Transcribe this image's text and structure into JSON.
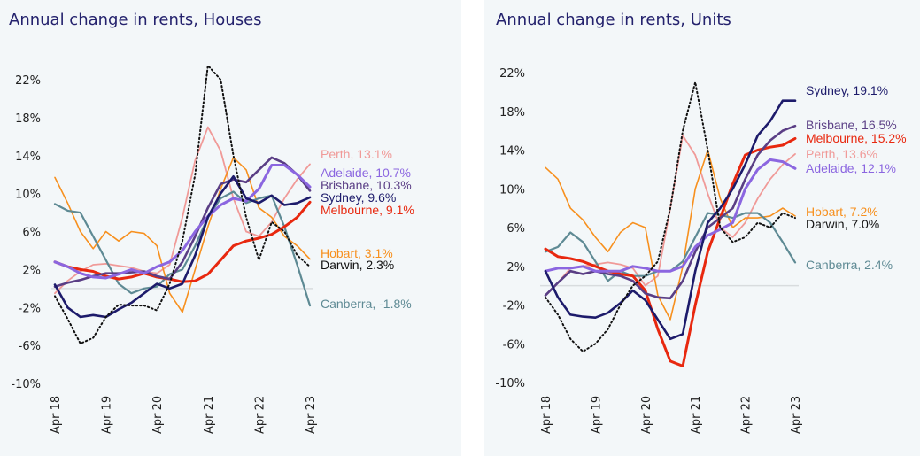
{
  "colors": {
    "Sydney": "#1d1b6b",
    "Melbourne": "#e8280f",
    "Brisbane": "#5a3e85",
    "Adelaide": "#8b66e0",
    "Perth": "#f09a98",
    "Hobart": "#f7901e",
    "Darwin": "#111111",
    "Canberra": "#5e8a94"
  },
  "chart_data": [
    {
      "type": "line",
      "title": "Annual change in rents, Houses",
      "xlabel": "",
      "ylabel": "",
      "ylim": [
        -10,
        22
      ],
      "yticks": [
        "22%",
        "18%",
        "14%",
        "10%",
        "6%",
        "2%",
        "-2%",
        "-6%",
        "-10%"
      ],
      "ytick_values": [
        22,
        18,
        14,
        10,
        6,
        2,
        -2,
        -6,
        -10
      ],
      "xticks": [
        "Apr 18",
        "Apr 19",
        "Apr 20",
        "Apr 21",
        "Apr 22",
        "Apr 23"
      ],
      "x_note": "x in years since Apr 18, quarterly samples",
      "x": [
        0,
        0.25,
        0.5,
        0.75,
        1,
        1.25,
        1.5,
        1.75,
        2,
        2.25,
        2.5,
        2.75,
        3,
        3.25,
        3.5,
        3.75,
        4,
        4.25,
        4.5,
        4.75,
        5
      ],
      "grid": false,
      "zero_line": true,
      "series": [
        {
          "name": "Perth",
          "end_label": "Perth, 13.1%",
          "values": [
            -0.5,
            0.8,
            1.8,
            2.5,
            2.6,
            2.4,
            2.2,
            1.8,
            1.6,
            2.5,
            7.5,
            13.5,
            17.0,
            14.5,
            9.5,
            6.0,
            5.5,
            7.0,
            9.5,
            11.5,
            13.1
          ]
        },
        {
          "name": "Adelaide",
          "end_label": "Adelaide, 10.7%",
          "values": [
            2.8,
            2.3,
            1.6,
            1.2,
            1.1,
            1.5,
            2.0,
            1.6,
            2.3,
            2.8,
            4.0,
            6.0,
            7.6,
            8.8,
            9.5,
            9.2,
            10.5,
            13.0,
            13.0,
            12.0,
            10.7
          ]
        },
        {
          "name": "Brisbane",
          "end_label": "Brisbane, 10.3%",
          "values": [
            0.2,
            0.6,
            0.9,
            1.3,
            1.6,
            1.6,
            1.7,
            1.8,
            1.3,
            1.0,
            2.8,
            5.5,
            8.5,
            11.0,
            11.5,
            11.2,
            12.5,
            13.8,
            13.2,
            12.0,
            10.3
          ]
        },
        {
          "name": "Sydney",
          "end_label": "Sydney, 9.6%",
          "values": [
            0.4,
            -2.0,
            -3.0,
            -2.8,
            -3.0,
            -2.2,
            -1.5,
            -0.5,
            0.5,
            0.0,
            0.5,
            3.5,
            7.5,
            10.0,
            11.8,
            9.5,
            9.0,
            9.8,
            8.8,
            9.0,
            9.6
          ]
        },
        {
          "name": "Melbourne",
          "end_label": "Melbourne, 9.1%",
          "values": [
            2.8,
            2.3,
            2.0,
            1.8,
            1.3,
            1.0,
            1.2,
            1.6,
            1.2,
            1.0,
            0.7,
            0.8,
            1.5,
            3.0,
            4.5,
            5.0,
            5.3,
            5.7,
            6.5,
            7.5,
            9.1
          ]
        },
        {
          "name": "Hobart",
          "end_label": "Hobart, 3.1%",
          "values": [
            11.7,
            9.0,
            6.0,
            4.2,
            6.0,
            5.0,
            6.0,
            5.8,
            4.5,
            -0.5,
            -2.5,
            2.0,
            6.5,
            10.5,
            13.8,
            12.5,
            8.5,
            7.5,
            5.5,
            4.5,
            3.1
          ]
        },
        {
          "name": "Darwin",
          "end_label": "Darwin, 2.3%",
          "dashed": true,
          "values": [
            -0.8,
            -3.2,
            -5.8,
            -5.2,
            -3.0,
            -1.7,
            -1.8,
            -1.8,
            -2.3,
            0.5,
            5.0,
            12.0,
            23.5,
            22.0,
            14.0,
            7.5,
            3.0,
            7.0,
            6.0,
            3.5,
            2.3
          ]
        },
        {
          "name": "Canberra",
          "end_label": "Canberra, -1.8%",
          "values": [
            8.9,
            8.2,
            8.0,
            5.5,
            3.0,
            0.5,
            -0.5,
            0.0,
            0.2,
            1.5,
            2.0,
            4.5,
            7.5,
            9.5,
            10.2,
            9.0,
            9.5,
            9.8,
            6.5,
            2.5,
            -1.8
          ]
        }
      ]
    },
    {
      "type": "line",
      "title": "Annual change in rents, Units",
      "xlabel": "",
      "ylabel": "",
      "ylim": [
        -10,
        22
      ],
      "yticks": [
        "22%",
        "18%",
        "14%",
        "10%",
        "6%",
        "2%",
        "-2%",
        "-6%",
        "-10%"
      ],
      "ytick_values": [
        22,
        18,
        14,
        10,
        6,
        2,
        -2,
        -6,
        -10
      ],
      "xticks": [
        "Apr 18",
        "Apr 19",
        "Apr 20",
        "Apr 21",
        "Apr 22",
        "Apr 23"
      ],
      "x_note": "x in years since Apr 18, quarterly samples",
      "x": [
        0,
        0.25,
        0.5,
        0.75,
        1,
        1.25,
        1.5,
        1.75,
        2,
        2.25,
        2.5,
        2.75,
        3,
        3.25,
        3.5,
        3.75,
        4,
        4.25,
        4.5,
        4.75,
        5
      ],
      "grid": false,
      "zero_line": true,
      "series": [
        {
          "name": "Sydney",
          "end_label": "Sydney, 19.1%",
          "values": [
            1.5,
            -1.2,
            -3.0,
            -3.2,
            -3.3,
            -2.8,
            -1.8,
            -0.5,
            -1.5,
            -3.5,
            -5.5,
            -5.0,
            1.5,
            6.5,
            8.0,
            10.0,
            12.5,
            15.5,
            17.0,
            19.1,
            19.1
          ]
        },
        {
          "name": "Brisbane",
          "end_label": "Brisbane, 16.5%",
          "values": [
            -1.0,
            0.3,
            1.5,
            1.2,
            1.5,
            1.2,
            1.0,
            0.5,
            -0.8,
            -1.2,
            -1.3,
            0.5,
            3.5,
            6.0,
            7.0,
            8.0,
            11.0,
            13.5,
            15.0,
            16.0,
            16.5
          ]
        },
        {
          "name": "Melbourne",
          "end_label": "Melbourne, 15.2%",
          "values": [
            3.8,
            3.0,
            2.8,
            2.5,
            2.0,
            1.5,
            1.2,
            1.0,
            -0.5,
            -4.5,
            -7.8,
            -8.3,
            -2.0,
            3.5,
            7.0,
            10.5,
            13.5,
            14.0,
            14.3,
            14.5,
            15.2
          ]
        },
        {
          "name": "Perth",
          "end_label": "Perth, 13.6%",
          "values": [
            -1.0,
            0.3,
            1.8,
            2.0,
            2.2,
            2.4,
            2.2,
            1.8,
            0.0,
            1.0,
            8.0,
            15.5,
            13.5,
            9.5,
            6.0,
            5.0,
            6.5,
            9.0,
            11.0,
            12.5,
            13.6
          ]
        },
        {
          "name": "Adelaide",
          "end_label": "Adelaide, 12.1%",
          "values": [
            1.5,
            1.8,
            1.8,
            2.0,
            1.5,
            1.5,
            1.5,
            2.0,
            1.8,
            1.5,
            1.5,
            2.0,
            4.0,
            5.2,
            5.8,
            6.5,
            10.0,
            12.0,
            13.0,
            12.8,
            12.1
          ]
        },
        {
          "name": "Hobart",
          "end_label": "Hobart, 7.2%",
          "values": [
            12.2,
            11.0,
            8.0,
            6.8,
            5.0,
            3.5,
            5.5,
            6.5,
            6.0,
            -1.0,
            -3.5,
            2.0,
            10.0,
            14.0,
            9.0,
            6.0,
            7.0,
            7.0,
            7.2,
            8.0,
            7.2
          ]
        },
        {
          "name": "Darwin",
          "end_label": "Darwin, 7.0%",
          "dashed": true,
          "values": [
            -1.2,
            -3.0,
            -5.5,
            -6.8,
            -6.0,
            -4.5,
            -2.0,
            0.0,
            1.0,
            2.5,
            8.0,
            16.0,
            21.0,
            14.0,
            6.0,
            4.5,
            5.0,
            6.5,
            6.0,
            7.5,
            7.0
          ]
        },
        {
          "name": "Canberra",
          "end_label": "Canberra, 2.4%",
          "values": [
            3.5,
            4.0,
            5.5,
            4.5,
            2.5,
            0.5,
            1.5,
            1.0,
            1.0,
            1.5,
            1.5,
            2.5,
            5.0,
            7.5,
            7.3,
            7.0,
            7.5,
            7.5,
            6.5,
            4.5,
            2.4
          ]
        }
      ]
    }
  ]
}
